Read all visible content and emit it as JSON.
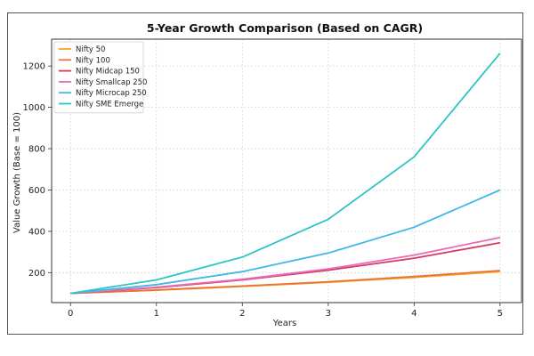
{
  "chart_data": {
    "type": "line",
    "title": "5-Year Growth Comparison (Based on CAGR)",
    "xlabel": "Years",
    "ylabel": "Value Growth (Base = 100)",
    "x": [
      0,
      1,
      2,
      3,
      4,
      5
    ],
    "xticks": [
      "0",
      "1",
      "2",
      "3",
      "4",
      "5"
    ],
    "yticks": [
      "200",
      "400",
      "600",
      "800",
      "1000",
      "1200"
    ],
    "xlim": [
      -0.22,
      5.25
    ],
    "ylim": [
      55,
      1330
    ],
    "grid": true,
    "legend_position": "top-left",
    "series": [
      {
        "name": "Nifty 50",
        "color": "#f5a623",
        "values": [
          100,
          115,
          133,
          153,
          177,
          205
        ]
      },
      {
        "name": "Nifty 100",
        "color": "#e8743b",
        "values": [
          100,
          116,
          135,
          156,
          181,
          210
        ]
      },
      {
        "name": "Nifty Midcap 150",
        "color": "#d7385e",
        "values": [
          100,
          128,
          165,
          212,
          270,
          345
        ]
      },
      {
        "name": "Nifty Smallcap 250",
        "color": "#e86ab8",
        "values": [
          100,
          130,
          168,
          218,
          285,
          370
        ]
      },
      {
        "name": "Nifty Microcap 250",
        "color": "#3fb8e8",
        "values": [
          100,
          142,
          205,
          295,
          420,
          600
        ]
      },
      {
        "name": "Nifty SME Emerge",
        "color": "#2ec4c4",
        "values": [
          100,
          165,
          275,
          458,
          760,
          1262
        ]
      }
    ]
  }
}
